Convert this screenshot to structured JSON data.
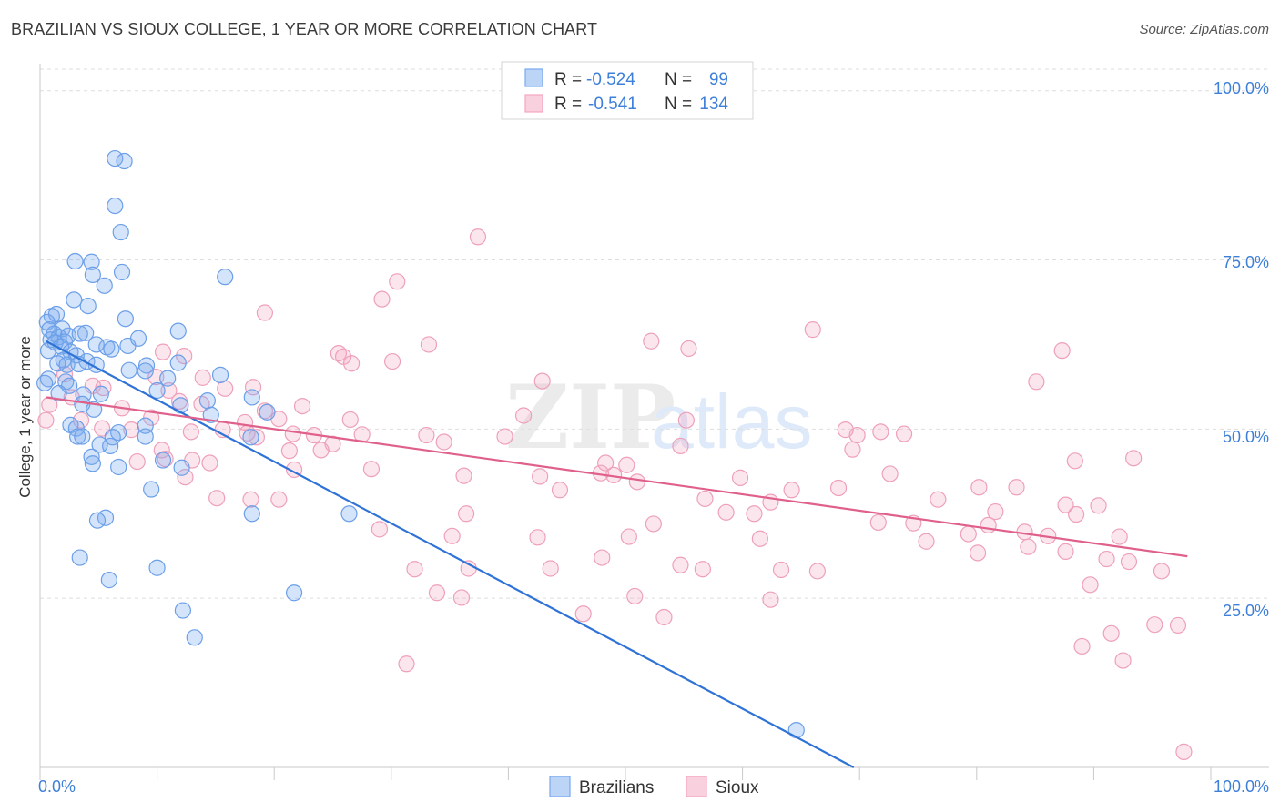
{
  "header": {
    "title": "BRAZILIAN VS SIOUX COLLEGE, 1 YEAR OR MORE CORRELATION CHART",
    "source": "Source: ZipAtlas.com"
  },
  "watermark": {
    "zip": "ZIP",
    "atlas": "atlas"
  },
  "chart_data": {
    "type": "scatter",
    "title": "BRAZILIAN VS SIOUX COLLEGE, 1 YEAR OR MORE CORRELATION CHART",
    "xlabel": "",
    "ylabel": "College, 1 year or more",
    "xlim": [
      0,
      100
    ],
    "ylim": [
      0,
      104
    ],
    "x_tick_labels": [
      "0.0%",
      "100.0%"
    ],
    "y_ticks": [
      25,
      50,
      75,
      100
    ],
    "y_tick_labels": [
      "25.0%",
      "50.0%",
      "75.0%",
      "100.0%"
    ],
    "grid": true,
    "legend_position": "top-center",
    "colors": {
      "brazilians": "#7aaaf0",
      "brazilians_line": "#2f73d6",
      "sioux": "#f3a6c0",
      "sioux_line": "#e0608c"
    },
    "stats": [
      {
        "series": "Brazilians",
        "r_label": "R =",
        "r": "-0.524",
        "n_label": "N =",
        "n": "99"
      },
      {
        "series": "Sioux",
        "r_label": "R =",
        "r": "-0.541",
        "n_label": "N =",
        "n": "134"
      }
    ],
    "series": [
      {
        "name": "Brazilians",
        "trend": {
          "x": [
            0.5,
            69.5
          ],
          "y": [
            63.0,
            0.0
          ]
        },
        "points": [
          [
            6.4,
            90.0
          ],
          [
            7.2,
            89.6
          ],
          [
            6.4,
            83.0
          ],
          [
            6.9,
            79.1
          ],
          [
            3.0,
            74.8
          ],
          [
            4.4,
            74.7
          ],
          [
            7.0,
            73.2
          ],
          [
            15.8,
            72.5
          ],
          [
            4.5,
            72.8
          ],
          [
            5.5,
            71.2
          ],
          [
            2.9,
            69.1
          ],
          [
            4.1,
            68.2
          ],
          [
            7.3,
            66.3
          ],
          [
            1.0,
            66.7
          ],
          [
            1.4,
            67.0
          ],
          [
            0.6,
            65.8
          ],
          [
            1.9,
            64.8
          ],
          [
            2.4,
            63.8
          ],
          [
            3.9,
            64.2
          ],
          [
            0.8,
            64.7
          ],
          [
            1.2,
            64.1
          ],
          [
            1.6,
            63.6
          ],
          [
            2.1,
            62.9
          ],
          [
            3.4,
            64.1
          ],
          [
            0.9,
            63.2
          ],
          [
            1.3,
            62.8
          ],
          [
            1.8,
            62.2
          ],
          [
            2.6,
            61.4
          ],
          [
            0.7,
            61.6
          ],
          [
            3.1,
            60.9
          ],
          [
            4.8,
            62.5
          ],
          [
            5.7,
            62.1
          ],
          [
            6.1,
            61.8
          ],
          [
            7.5,
            62.3
          ],
          [
            8.4,
            63.4
          ],
          [
            11.8,
            64.5
          ],
          [
            2.0,
            60.2
          ],
          [
            4.0,
            60.0
          ],
          [
            1.5,
            59.7
          ],
          [
            2.3,
            59.5
          ],
          [
            3.3,
            59.6
          ],
          [
            4.8,
            59.5
          ],
          [
            9.1,
            59.4
          ],
          [
            11.8,
            59.8
          ],
          [
            7.6,
            58.7
          ],
          [
            9.0,
            58.6
          ],
          [
            10.9,
            57.5
          ],
          [
            15.4,
            58.0
          ],
          [
            0.7,
            57.4
          ],
          [
            2.2,
            57.0
          ],
          [
            0.4,
            56.8
          ],
          [
            2.5,
            56.4
          ],
          [
            10.0,
            55.7
          ],
          [
            1.6,
            55.3
          ],
          [
            3.7,
            55.1
          ],
          [
            5.2,
            55.2
          ],
          [
            14.3,
            54.2
          ],
          [
            18.1,
            54.7
          ],
          [
            3.6,
            53.7
          ],
          [
            4.6,
            52.9
          ],
          [
            12.0,
            53.5
          ],
          [
            14.6,
            52.1
          ],
          [
            19.4,
            52.5
          ],
          [
            2.6,
            50.6
          ],
          [
            3.1,
            50.1
          ],
          [
            6.7,
            49.5
          ],
          [
            9.0,
            50.5
          ],
          [
            3.2,
            48.9
          ],
          [
            3.6,
            48.9
          ],
          [
            6.2,
            48.8
          ],
          [
            9.0,
            48.9
          ],
          [
            18.0,
            48.8
          ],
          [
            5.1,
            47.7
          ],
          [
            6.0,
            47.5
          ],
          [
            4.4,
            45.9
          ],
          [
            10.5,
            45.4
          ],
          [
            4.5,
            44.9
          ],
          [
            12.1,
            44.3
          ],
          [
            6.7,
            44.4
          ],
          [
            9.5,
            41.1
          ],
          [
            18.1,
            37.5
          ],
          [
            26.4,
            37.5
          ],
          [
            5.6,
            36.9
          ],
          [
            4.9,
            36.5
          ],
          [
            3.4,
            31.0
          ],
          [
            10.0,
            29.5
          ],
          [
            5.9,
            27.7
          ],
          [
            21.7,
            25.8
          ],
          [
            12.2,
            23.2
          ],
          [
            13.2,
            19.2
          ],
          [
            64.6,
            5.5
          ]
        ]
      },
      {
        "name": "Sioux",
        "trend": {
          "x": [
            0.5,
            98.0
          ],
          "y": [
            54.7,
            31.2
          ]
        },
        "points": [
          [
            37.4,
            78.4
          ],
          [
            30.5,
            71.8
          ],
          [
            29.2,
            69.2
          ],
          [
            19.2,
            67.2
          ],
          [
            66.0,
            64.7
          ],
          [
            52.2,
            63.0
          ],
          [
            33.2,
            62.5
          ],
          [
            55.4,
            61.9
          ],
          [
            87.3,
            61.6
          ],
          [
            10.5,
            61.4
          ],
          [
            25.5,
            61.2
          ],
          [
            25.9,
            60.7
          ],
          [
            12.3,
            60.8
          ],
          [
            30.1,
            60.0
          ],
          [
            26.6,
            59.7
          ],
          [
            2.1,
            58.1
          ],
          [
            9.9,
            57.7
          ],
          [
            13.9,
            57.6
          ],
          [
            15.8,
            56.0
          ],
          [
            4.5,
            56.4
          ],
          [
            5.4,
            56.1
          ],
          [
            18.2,
            56.2
          ],
          [
            42.9,
            57.1
          ],
          [
            85.1,
            57.0
          ],
          [
            11.0,
            55.7
          ],
          [
            2.7,
            54.7
          ],
          [
            11.9,
            54.1
          ],
          [
            0.8,
            53.6
          ],
          [
            13.8,
            53.7
          ],
          [
            22.4,
            53.4
          ],
          [
            7.0,
            53.1
          ],
          [
            19.2,
            52.7
          ],
          [
            41.3,
            52.0
          ],
          [
            3.5,
            51.3
          ],
          [
            9.5,
            51.7
          ],
          [
            20.4,
            51.5
          ],
          [
            26.5,
            51.4
          ],
          [
            0.5,
            51.3
          ],
          [
            17.5,
            51.0
          ],
          [
            55.2,
            51.3
          ],
          [
            5.3,
            50.1
          ],
          [
            7.8,
            49.9
          ],
          [
            15.6,
            49.9
          ],
          [
            17.7,
            49.4
          ],
          [
            12.9,
            49.6
          ],
          [
            21.6,
            49.3
          ],
          [
            23.4,
            49.1
          ],
          [
            27.5,
            49.2
          ],
          [
            33.0,
            49.1
          ],
          [
            39.7,
            48.9
          ],
          [
            71.8,
            49.6
          ],
          [
            73.8,
            49.3
          ],
          [
            68.8,
            49.9
          ],
          [
            69.8,
            49.1
          ],
          [
            18.5,
            48.8
          ],
          [
            34.5,
            48.1
          ],
          [
            25.0,
            47.8
          ],
          [
            24.0,
            46.9
          ],
          [
            10.4,
            46.9
          ],
          [
            21.3,
            46.8
          ],
          [
            54.7,
            47.5
          ],
          [
            69.4,
            47.0
          ],
          [
            93.4,
            45.7
          ],
          [
            8.3,
            45.2
          ],
          [
            10.7,
            45.6
          ],
          [
            13.0,
            45.4
          ],
          [
            14.5,
            45.0
          ],
          [
            48.3,
            45.0
          ],
          [
            50.1,
            44.7
          ],
          [
            21.7,
            44.0
          ],
          [
            28.3,
            44.1
          ],
          [
            36.2,
            43.1
          ],
          [
            42.7,
            43.0
          ],
          [
            47.9,
            43.5
          ],
          [
            49.0,
            43.2
          ],
          [
            59.8,
            42.8
          ],
          [
            72.6,
            43.4
          ],
          [
            12.4,
            42.9
          ],
          [
            51.0,
            42.2
          ],
          [
            88.4,
            45.3
          ],
          [
            44.4,
            41.0
          ],
          [
            64.2,
            41.0
          ],
          [
            68.2,
            41.3
          ],
          [
            80.2,
            41.4
          ],
          [
            56.8,
            39.7
          ],
          [
            76.7,
            39.6
          ],
          [
            83.4,
            41.4
          ],
          [
            15.1,
            39.8
          ],
          [
            18.0,
            39.6
          ],
          [
            20.4,
            39.6
          ],
          [
            62.4,
            39.2
          ],
          [
            87.6,
            38.8
          ],
          [
            90.4,
            38.7
          ],
          [
            58.6,
            37.7
          ],
          [
            61.0,
            37.5
          ],
          [
            81.6,
            37.8
          ],
          [
            36.4,
            37.5
          ],
          [
            88.5,
            37.4
          ],
          [
            71.6,
            36.2
          ],
          [
            74.6,
            36.1
          ],
          [
            52.4,
            36.0
          ],
          [
            81.0,
            35.8
          ],
          [
            29.0,
            35.2
          ],
          [
            35.2,
            34.2
          ],
          [
            42.5,
            34.0
          ],
          [
            50.3,
            34.1
          ],
          [
            61.5,
            33.8
          ],
          [
            79.3,
            34.5
          ],
          [
            84.1,
            34.8
          ],
          [
            86.1,
            34.2
          ],
          [
            92.2,
            34.1
          ],
          [
            75.7,
            33.4
          ],
          [
            84.4,
            32.6
          ],
          [
            87.6,
            31.9
          ],
          [
            80.1,
            31.7
          ],
          [
            91.1,
            30.8
          ],
          [
            93.0,
            30.4
          ],
          [
            95.8,
            29.0
          ],
          [
            48.0,
            31.0
          ],
          [
            36.6,
            29.4
          ],
          [
            43.6,
            29.4
          ],
          [
            54.7,
            29.9
          ],
          [
            56.6,
            29.3
          ],
          [
            63.3,
            29.2
          ],
          [
            66.4,
            29.0
          ],
          [
            32.0,
            29.3
          ],
          [
            89.7,
            27.0
          ],
          [
            33.9,
            25.8
          ],
          [
            36.0,
            25.1
          ],
          [
            50.8,
            25.3
          ],
          [
            62.4,
            24.8
          ],
          [
            46.4,
            22.7
          ],
          [
            53.3,
            22.2
          ],
          [
            95.2,
            21.1
          ],
          [
            97.2,
            21.0
          ],
          [
            91.5,
            19.8
          ],
          [
            89.0,
            17.9
          ],
          [
            92.5,
            15.8
          ],
          [
            31.3,
            15.3
          ],
          [
            97.7,
            2.3
          ]
        ]
      }
    ]
  },
  "legend": {
    "brazilians": "Brazilians",
    "sioux": "Sioux"
  }
}
